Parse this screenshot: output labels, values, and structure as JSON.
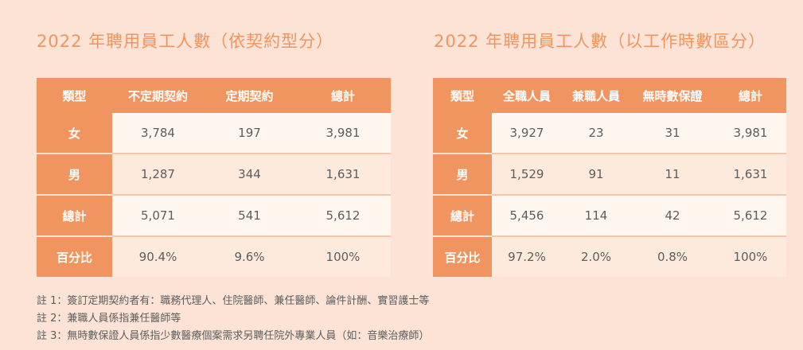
{
  "left": {
    "title": "2022 年聘用員工人數（依契約型分）",
    "headers": [
      "類型",
      "不定期契約",
      "定期契約",
      "總計"
    ],
    "rows": [
      {
        "label": "女",
        "values": [
          "3,784",
          "197",
          "3,981"
        ]
      },
      {
        "label": "男",
        "values": [
          "1,287",
          "344",
          "1,631"
        ]
      },
      {
        "label": "總計",
        "values": [
          "5,071",
          "541",
          "5,612"
        ]
      },
      {
        "label": "百分比",
        "values": [
          "90.4%",
          "9.6%",
          "100%"
        ]
      }
    ]
  },
  "right": {
    "title": "2022 年聘用員工人數（以工作時數區分）",
    "headers": [
      "類型",
      "全職人員",
      "兼職人員",
      "無時數保證",
      "總計"
    ],
    "rows": [
      {
        "label": "女",
        "values": [
          "3,927",
          "23",
          "31",
          "3,981"
        ]
      },
      {
        "label": "男",
        "values": [
          "1,529",
          "91",
          "11",
          "1,631"
        ]
      },
      {
        "label": "總計",
        "values": [
          "5,456",
          "114",
          "42",
          "5,612"
        ]
      },
      {
        "label": "百分比",
        "values": [
          "97.2%",
          "2.0%",
          "0.8%",
          "100%"
        ]
      }
    ]
  },
  "notes": [
    "註 1：簽訂定期契約者有：職務代理人、住院醫師、兼任醫師、論件計酬、實習護士等",
    "註 2：兼職人員係指兼任醫師等",
    "註 3：無時數保證人員係指少數醫療個案需求另聘任院外專業人員（如：音樂治療師）"
  ],
  "colors": {
    "background": "#fce3d6",
    "accent": "#f0955f",
    "row_light": "#fff6f0",
    "row_alt": "#fdeadd",
    "text": "#5d5d5d"
  }
}
